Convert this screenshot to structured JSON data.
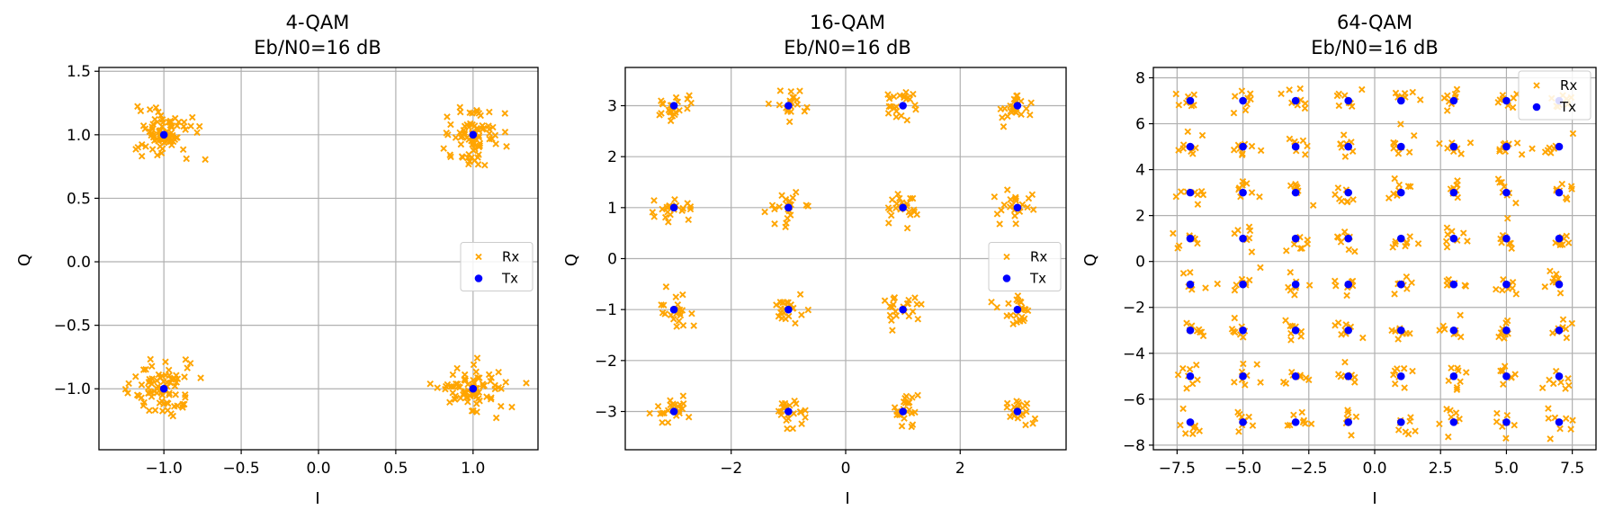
{
  "figure": {
    "colors": {
      "rx": "#FFA500",
      "tx": "#0000FF",
      "grid": "#b0b0b0"
    }
  },
  "chart_data": [
    {
      "type": "scatter",
      "title_line1": "4-QAM",
      "title_line2": "Eb/N0=16 dB",
      "xlabel": "I",
      "ylabel": "Q",
      "xlim": [
        -1.42,
        1.42
      ],
      "ylim": [
        -1.48,
        1.53
      ],
      "xticks": [
        -1.0,
        -0.5,
        0.0,
        0.5,
        1.0
      ],
      "xtick_labels": [
        "−1.0",
        "−0.5",
        "0.0",
        "0.5",
        "1.0"
      ],
      "yticks": [
        -1.0,
        -0.5,
        0.0,
        0.5,
        1.0,
        1.5
      ],
      "ytick_labels": [
        "−1.0",
        "−0.5",
        "0.0",
        "0.5",
        "1.0",
        "1.5"
      ],
      "grid": true,
      "legend": {
        "placement": "center-right",
        "entries": [
          "Rx",
          "Tx"
        ]
      },
      "series": [
        {
          "name": "Tx",
          "marker": "circle",
          "points": [
            [
              -1,
              1
            ],
            [
              1,
              1
            ],
            [
              -1,
              -1
            ],
            [
              1,
              -1
            ]
          ]
        },
        {
          "name": "Rx",
          "marker": "x",
          "cluster_spread": 0.1,
          "points_per_symbol": 80,
          "noise_seed": 4,
          "note_points": "received samples scattered around each Tx point"
        }
      ]
    },
    {
      "type": "scatter",
      "title_line1": "16-QAM",
      "title_line2": "Eb/N0=16 dB",
      "xlabel": "I",
      "ylabel": "Q",
      "xlim": [
        -3.85,
        3.85
      ],
      "ylim": [
        -3.75,
        3.75
      ],
      "xticks": [
        -2,
        0,
        2
      ],
      "xtick_labels": [
        "−2",
        "0",
        "2"
      ],
      "yticks": [
        -3,
        -2,
        -1,
        0,
        1,
        2,
        3
      ],
      "ytick_labels": [
        "−3",
        "−2",
        "−1",
        "0",
        "1",
        "2",
        "3"
      ],
      "grid": true,
      "legend": {
        "placement": "center-right",
        "entries": [
          "Rx",
          "Tx"
        ]
      },
      "series": [
        {
          "name": "Tx",
          "marker": "circle",
          "points": [
            [
              -3,
              3
            ],
            [
              -1,
              3
            ],
            [
              1,
              3
            ],
            [
              3,
              3
            ],
            [
              -3,
              1
            ],
            [
              -1,
              1
            ],
            [
              1,
              1
            ],
            [
              3,
              1
            ],
            [
              -3,
              -1
            ],
            [
              -1,
              -1
            ],
            [
              1,
              -1
            ],
            [
              3,
              -1
            ],
            [
              -3,
              -3
            ],
            [
              -1,
              -3
            ],
            [
              1,
              -3
            ],
            [
              3,
              -3
            ]
          ]
        },
        {
          "name": "Rx",
          "marker": "x",
          "cluster_spread": 0.16,
          "points_per_symbol": 22,
          "noise_seed": 16
        }
      ]
    },
    {
      "type": "scatter",
      "title_line1": "64-QAM",
      "title_line2": "Eb/N0=16 dB",
      "xlabel": "I",
      "ylabel": "Q",
      "xlim": [
        -8.4,
        8.4
      ],
      "ylim": [
        -8.2,
        8.45
      ],
      "xticks": [
        -7.5,
        -5.0,
        -2.5,
        0.0,
        2.5,
        5.0,
        7.5
      ],
      "xtick_labels": [
        "−7.5",
        "−5.0",
        "−2.5",
        "0.0",
        "2.5",
        "5.0",
        "7.5"
      ],
      "yticks": [
        -8,
        -6,
        -4,
        -2,
        0,
        2,
        4,
        6,
        8
      ],
      "ytick_labels": [
        "−8",
        "−6",
        "−4",
        "−2",
        "0",
        "2",
        "4",
        "6",
        "8"
      ],
      "grid": true,
      "legend": {
        "placement": "top-right",
        "entries": [
          "Rx",
          "Tx"
        ]
      },
      "series": [
        {
          "name": "Tx",
          "marker": "circle",
          "levels": [
            -7,
            -5,
            -3,
            -1,
            1,
            3,
            5,
            7
          ]
        },
        {
          "name": "Rx",
          "marker": "x",
          "cluster_spread": 0.28,
          "points_per_symbol": 8,
          "noise_seed": 64
        }
      ]
    }
  ]
}
